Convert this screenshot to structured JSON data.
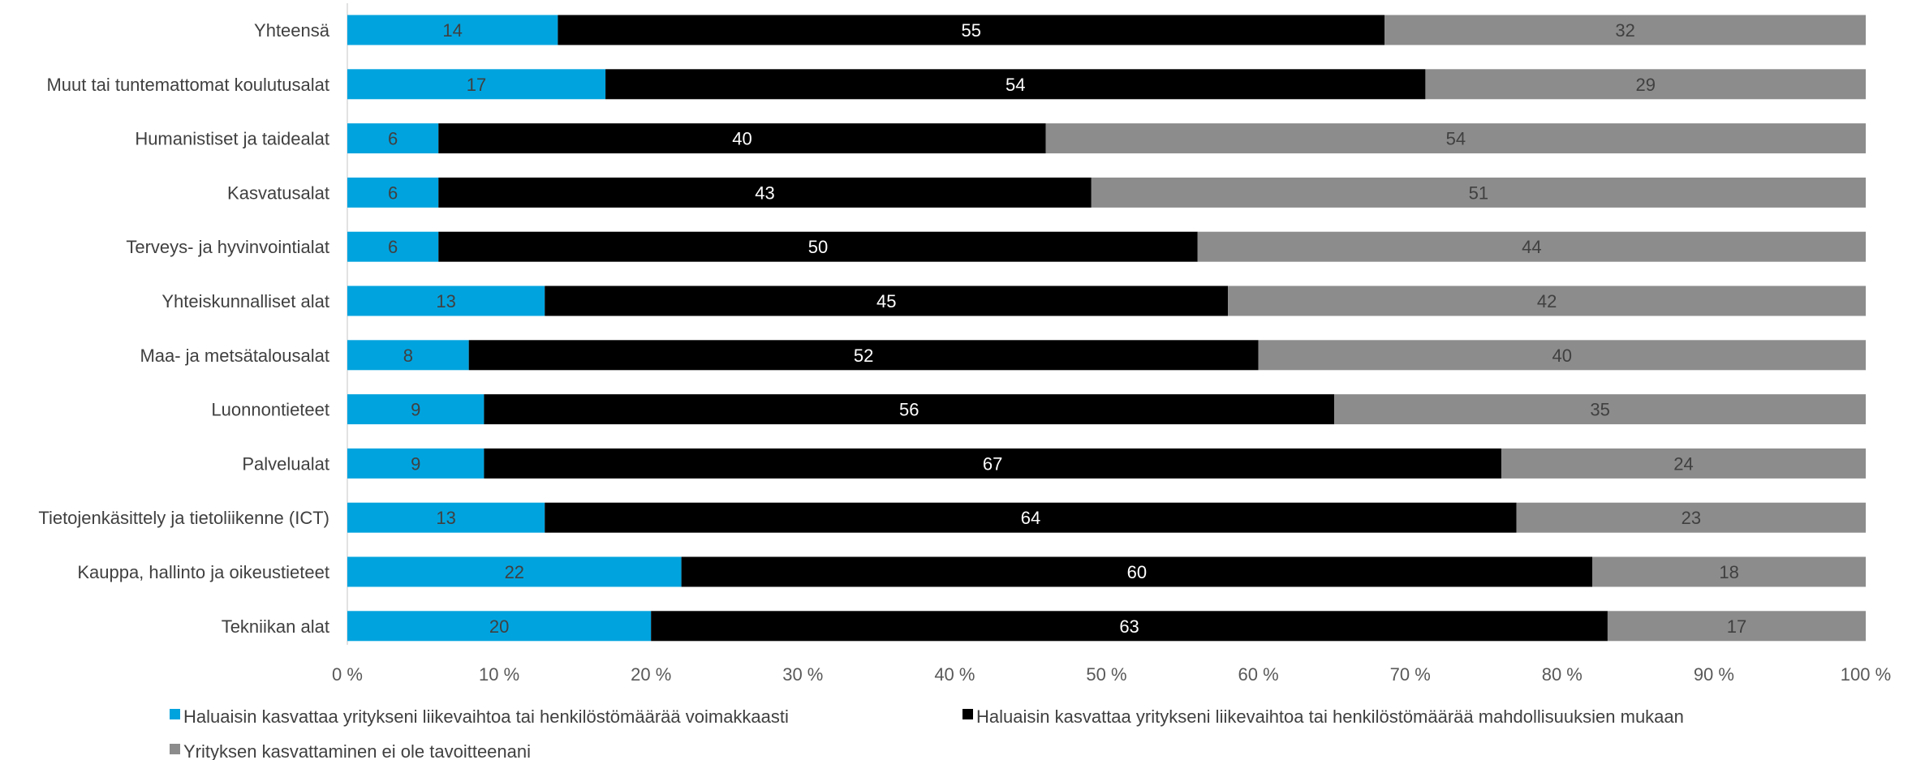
{
  "chart_data": {
    "type": "bar",
    "orientation": "horizontal",
    "stacked": "percent",
    "categories": [
      "Yhteensä",
      "Muut tai tuntemattomat koulutusalat",
      "Humanistiset ja taidealat",
      "Kasvatusalat",
      "Terveys- ja hyvinvointialat",
      "Yhteiskunnalliset alat",
      "Maa- ja metsätalousalat",
      "Luonnontieteet",
      "Palvelualat",
      "Tietojenkäsittely ja tietoliikenne (ICT)",
      "Kauppa, hallinto ja oikeustieteet",
      "Tekniikan alat"
    ],
    "series": [
      {
        "name": "Haluaisin kasvattaa yritykseni liikevaihtoa tai henkilöstömäärää voimakkaasti",
        "color": "#00A3DE",
        "label_color": "#404040",
        "values": [
          14,
          17,
          6,
          6,
          6,
          13,
          8,
          9,
          9,
          13,
          22,
          20
        ]
      },
      {
        "name": "Haluaisin kasvattaa yritykseni liikevaihtoa tai henkilöstömäärää mahdollisuuksien mukaan",
        "color": "#000000",
        "label_color": "#ffffff",
        "values": [
          55,
          54,
          40,
          43,
          50,
          45,
          52,
          56,
          67,
          64,
          60,
          63
        ]
      },
      {
        "name": "Yrityksen kasvattaminen ei ole tavoitteenani",
        "color": "#8C8C8C",
        "label_color": "#404040",
        "values": [
          32,
          29,
          54,
          51,
          44,
          42,
          40,
          35,
          24,
          23,
          18,
          17
        ]
      }
    ],
    "x_ticks": [
      "0 %",
      "10 %",
      "20 %",
      "30 %",
      "40 %",
      "50 %",
      "60 %",
      "70 %",
      "80 %",
      "90 %",
      "100 %"
    ],
    "xlim": [
      0,
      100
    ],
    "title": "",
    "xlabel": "",
    "ylabel": "",
    "grid": false,
    "legend_position": "bottom"
  }
}
